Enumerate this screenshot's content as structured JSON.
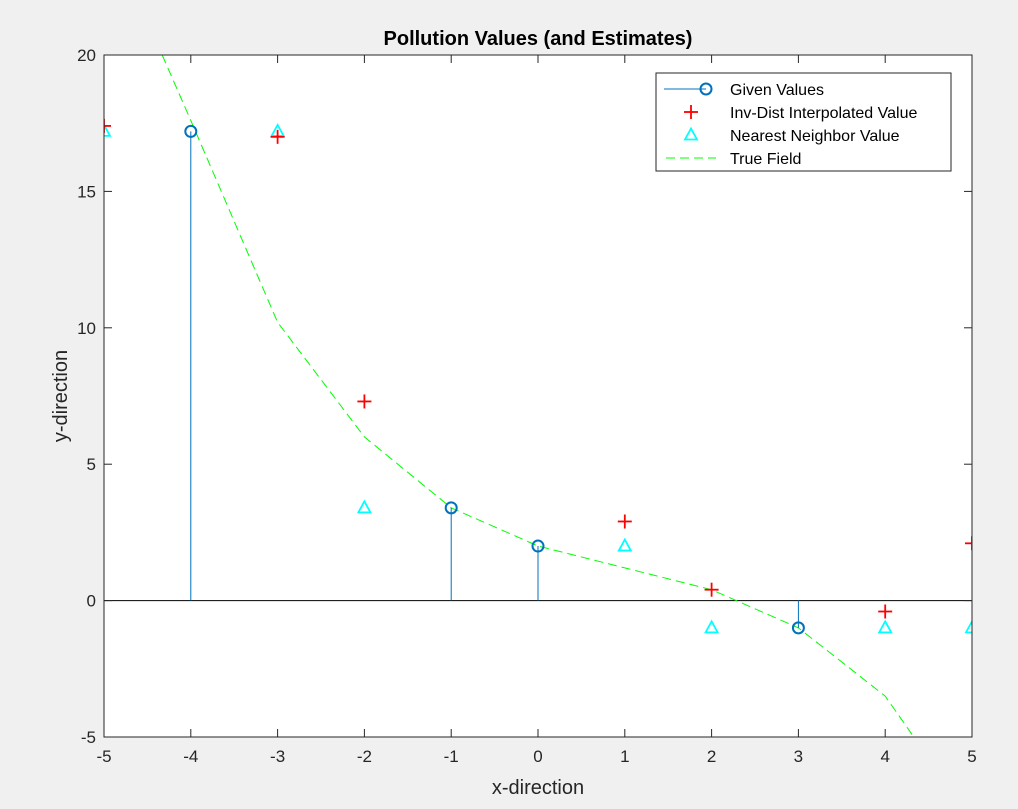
{
  "chart_data": {
    "type": "scatter",
    "title": "Pollution Values (and Estimates)",
    "xlabel": "x-direction",
    "ylabel": "y-direction",
    "xlim": [
      -5,
      5
    ],
    "ylim": [
      -5,
      20
    ],
    "xticks": [
      "-5",
      "-4",
      "-3",
      "-2",
      "-1",
      "0",
      "1",
      "2",
      "3",
      "4",
      "5"
    ],
    "yticks": [
      "-5",
      "0",
      "5",
      "10",
      "15",
      "20"
    ],
    "legend_position": "top-right",
    "grid": false,
    "series": [
      {
        "name": "Given Values",
        "style": "stem",
        "color": "#0072bd",
        "points": [
          [
            -4,
            17.2
          ],
          [
            -1,
            3.4
          ],
          [
            0,
            2.0
          ],
          [
            3,
            -1.0
          ]
        ]
      },
      {
        "name": "Inv-Dist Interpolated Value",
        "style": "plus",
        "color": "#ff0000",
        "points": [
          [
            -5,
            17.4
          ],
          [
            -3,
            17.0
          ],
          [
            -2,
            7.3
          ],
          [
            1,
            2.9
          ],
          [
            2,
            0.4
          ],
          [
            4,
            -0.4
          ],
          [
            5,
            2.1
          ]
        ]
      },
      {
        "name": "Nearest Neighbor Value",
        "style": "triangle",
        "color": "#00ffff",
        "points": [
          [
            -5,
            17.2
          ],
          [
            -3,
            17.2
          ],
          [
            -2,
            3.4
          ],
          [
            1,
            2.0
          ],
          [
            2,
            -1.0
          ],
          [
            4,
            -1.0
          ],
          [
            5,
            -1.0
          ]
        ]
      },
      {
        "name": "True Field",
        "style": "dashed-line",
        "color": "#00ff00",
        "points": [
          [
            -4.33,
            20.0
          ],
          [
            -4,
            17.6
          ],
          [
            -3,
            10.2
          ],
          [
            -2,
            6.0
          ],
          [
            -1,
            3.4
          ],
          [
            0,
            2.0
          ],
          [
            1,
            1.2
          ],
          [
            2,
            0.4
          ],
          [
            3,
            -1.0
          ],
          [
            4,
            -3.5
          ],
          [
            4.33,
            -5.0
          ]
        ]
      }
    ]
  }
}
